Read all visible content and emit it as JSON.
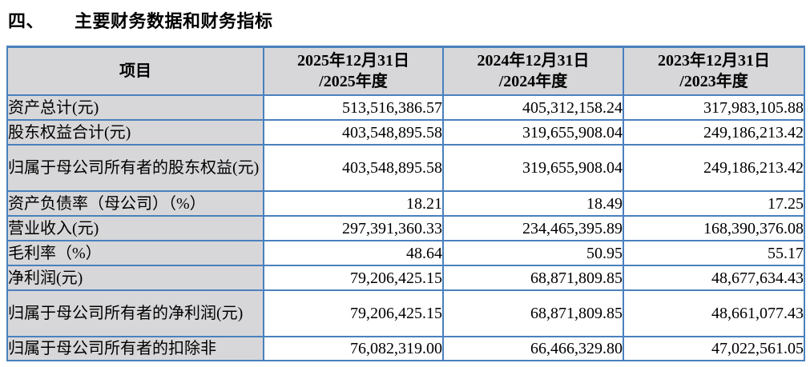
{
  "page": {
    "section_number": "四、",
    "section_title": "主要财务数据和财务指标"
  },
  "colors": {
    "table_border": "#4a80bd",
    "header_fill": "#d7d7d9",
    "label_column_fill": "#d7d7d9",
    "text": "#000000"
  },
  "table": {
    "header": {
      "item_label": "项目",
      "period_columns": [
        {
          "line1": "2025年12月31日",
          "line2": "/2025年度"
        },
        {
          "line1": "2024年12月31日",
          "line2": "/2024年度"
        },
        {
          "line1": "2023年12月31日",
          "line2": "/2023年度"
        }
      ]
    },
    "rows": [
      {
        "label": "资产总计(元)",
        "values": [
          "513,516,386.57",
          "405,312,158.24",
          "317,983,105.88"
        ]
      },
      {
        "label": "股东权益合计(元)",
        "values": [
          "403,548,895.58",
          "319,655,908.04",
          "249,186,213.42"
        ]
      },
      {
        "label": "归属于母公司所有者的股东权益(元)",
        "values": [
          "403,548,895.58",
          "319,655,908.04",
          "249,186,213.42"
        ]
      },
      {
        "label": "资产负债率（母公司）（%）",
        "values": [
          "18.21",
          "18.49",
          "17.25"
        ]
      },
      {
        "label": "营业收入(元)",
        "values": [
          "297,391,360.33",
          "234,465,395.89",
          "168,390,376.08"
        ]
      },
      {
        "label": "毛利率（%）",
        "values": [
          "48.64",
          "50.95",
          "55.17"
        ]
      },
      {
        "label": "净利润(元)",
        "values": [
          "79,206,425.15",
          "68,871,809.85",
          "48,677,634.43"
        ]
      },
      {
        "label": "归属于母公司所有者的净利润(元)",
        "values": [
          "79,206,425.15",
          "68,871,809.85",
          "48,661,077.43"
        ]
      },
      {
        "label": "归属于母公司所有者的扣除非",
        "values": [
          "76,082,319.00",
          "66,466,329.80",
          "47,022,561.05"
        ]
      }
    ]
  }
}
